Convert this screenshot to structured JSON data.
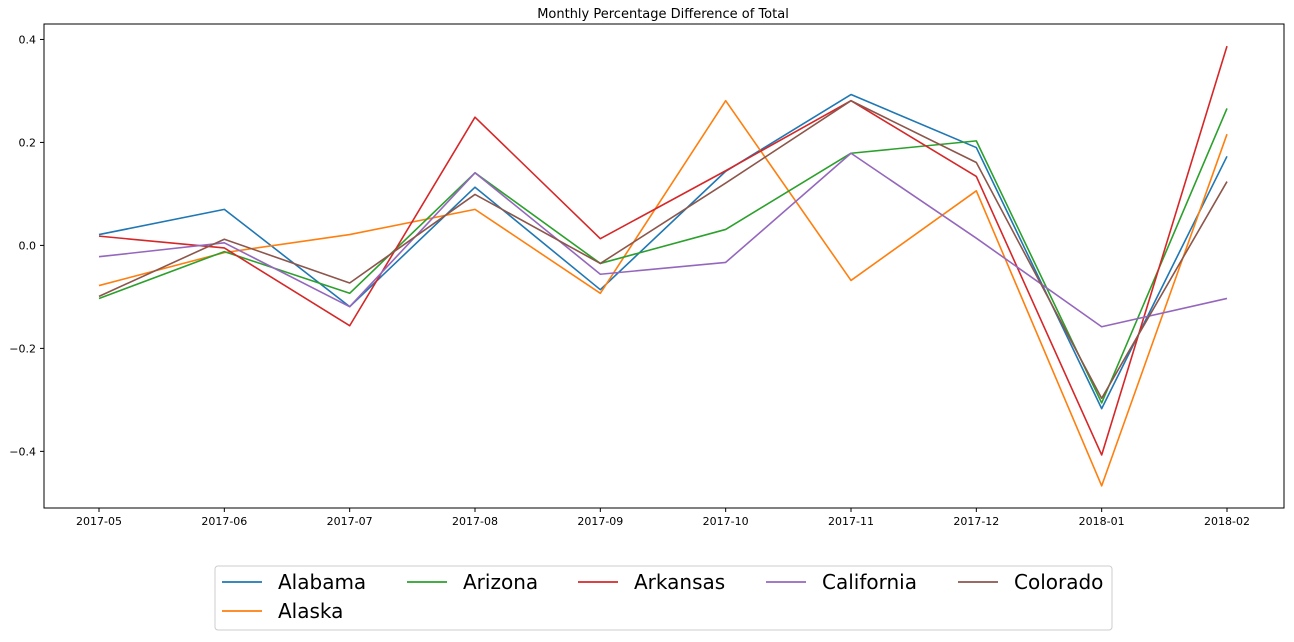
{
  "chart_data": {
    "type": "line",
    "title": "Monthly Percentage Difference of Total",
    "xlabel": "",
    "ylabel": "",
    "x": [
      "2017-05",
      "2017-06",
      "2017-07",
      "2017-08",
      "2017-09",
      "2017-10",
      "2017-11",
      "2017-12",
      "2018-01",
      "2018-02"
    ],
    "ylim": [
      -0.51,
      0.43
    ],
    "yticks": [
      -0.4,
      -0.2,
      0.0,
      0.2,
      0.4
    ],
    "ytick_labels": [
      "−0.4",
      "−0.2",
      "0.0",
      "0.2",
      "0.4"
    ],
    "grid": false,
    "legend": {
      "placement": "bottom-center",
      "columns": 5,
      "fontsize": "large"
    },
    "series": [
      {
        "name": "Alabama",
        "color": "#1f77b4",
        "values": [
          0.021,
          0.07,
          -0.119,
          0.113,
          -0.086,
          0.144,
          0.293,
          0.19,
          -0.317,
          0.173
        ]
      },
      {
        "name": "Alaska",
        "color": "#ff7f0e",
        "values": [
          -0.078,
          -0.014,
          0.021,
          0.07,
          -0.093,
          0.281,
          -0.068,
          0.106,
          -0.467,
          0.216
        ]
      },
      {
        "name": "Arizona",
        "color": "#2ca02c",
        "values": [
          -0.103,
          -0.012,
          -0.093,
          0.141,
          -0.035,
          0.031,
          0.179,
          0.203,
          -0.306,
          0.266
        ]
      },
      {
        "name": "Arkansas",
        "color": "#d62728",
        "values": [
          0.018,
          -0.005,
          -0.156,
          0.249,
          0.013,
          0.145,
          0.281,
          0.134,
          -0.407,
          0.387
        ]
      },
      {
        "name": "California",
        "color": "#9467bd",
        "values": [
          -0.022,
          0.005,
          -0.119,
          0.141,
          -0.056,
          -0.033,
          0.179,
          0.014,
          -0.158,
          -0.103
        ]
      },
      {
        "name": "Colorado",
        "color": "#8c564b",
        "values": [
          -0.099,
          0.012,
          -0.073,
          0.099,
          -0.035,
          0.121,
          0.281,
          0.161,
          -0.297,
          0.124
        ]
      }
    ]
  }
}
